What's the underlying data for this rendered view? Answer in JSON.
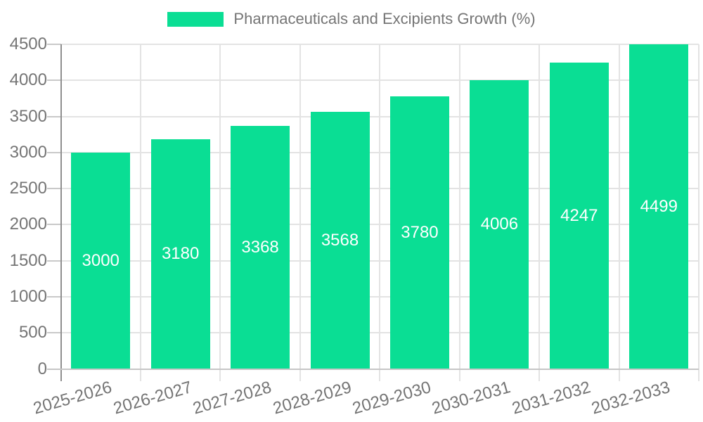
{
  "chart_data": {
    "type": "bar",
    "title": "Pharmaceuticals and Excipients Growth (%)",
    "categories": [
      "2025-2026",
      "2026-2027",
      "2027-2028",
      "2028-2029",
      "2029-2030",
      "2030-2031",
      "2031-2032",
      "2032-2033"
    ],
    "values": [
      3000,
      3180,
      3368,
      3568,
      3780,
      4006,
      4247,
      4499
    ],
    "bar_value_labels": [
      "3000",
      "3180",
      "3368",
      "3568",
      "3780",
      "4006",
      "4247",
      "4499"
    ],
    "xlabel": "",
    "ylabel": "",
    "ylim": [
      0,
      4500
    ],
    "ytick_step": 500,
    "ytick_labels": [
      "0",
      "500",
      "1000",
      "1500",
      "2000",
      "2500",
      "3000",
      "3500",
      "4000",
      "4500"
    ],
    "grid": true,
    "legend_position": "top",
    "colors": {
      "bar": "#0ade94",
      "grid": "#e3e3e3",
      "axis_y": "#8f8f8f",
      "axis_x": "#c6c6c6",
      "tick": "#c9c9c9",
      "tick_text": "#757575",
      "bar_label_text": "#ffffff",
      "background": "#ffffff"
    }
  }
}
